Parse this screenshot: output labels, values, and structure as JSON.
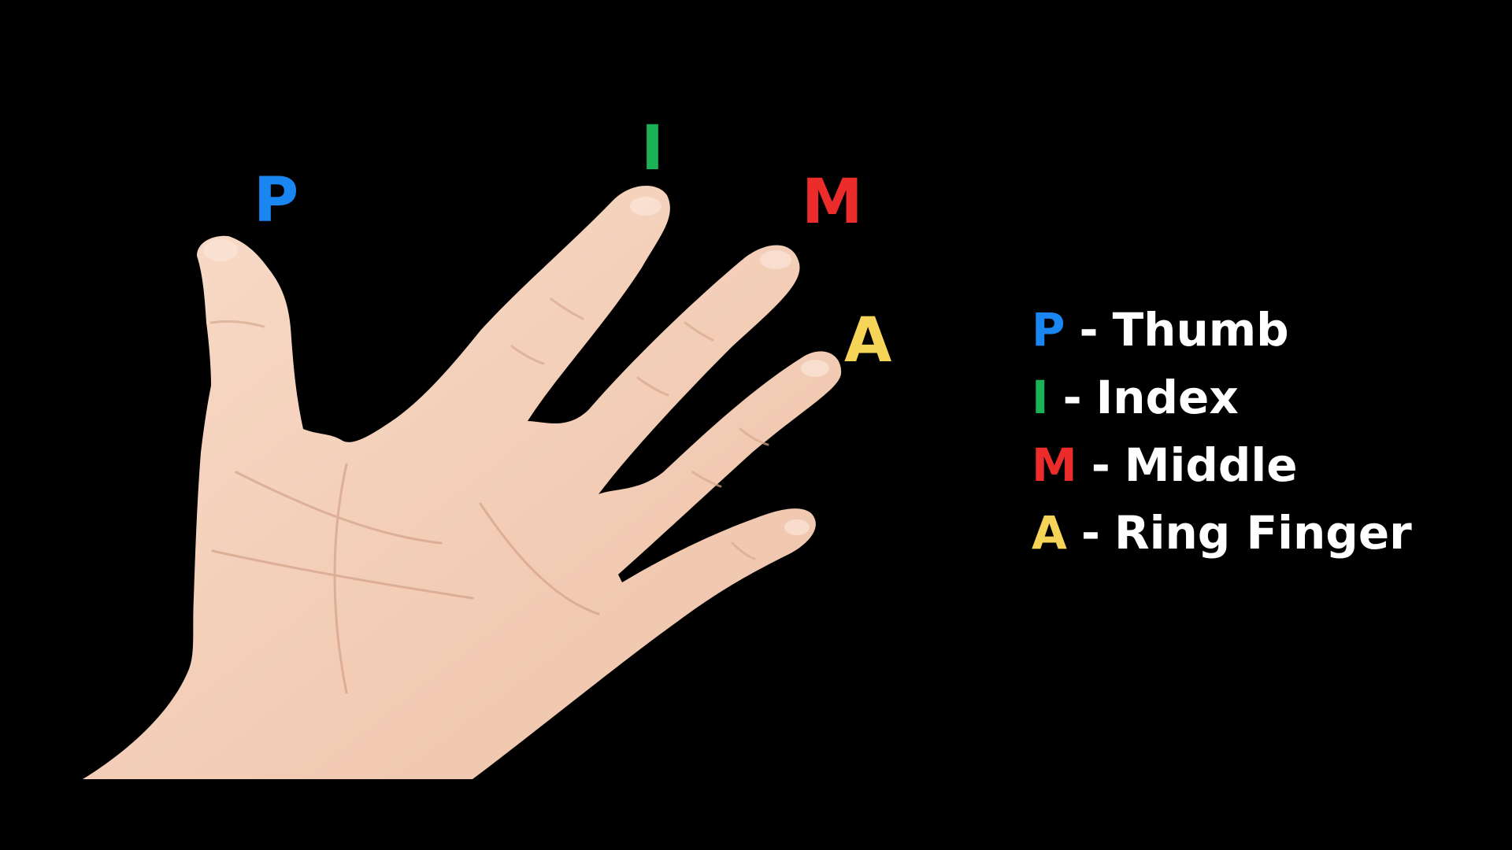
{
  "colors": {
    "background": "#000000",
    "thumb": "#1a86f2",
    "index": "#1bb257",
    "middle": "#ec2b2b",
    "ring": "#f5d457",
    "text": "#ffffff",
    "skin": "#f5d2bd",
    "skin_shadow": "#e8b9a0",
    "crease": "#d4a088"
  },
  "finger_labels": {
    "thumb": "P",
    "index": "I",
    "middle": "M",
    "ring": "A"
  },
  "legend": [
    {
      "letter": "P",
      "separator": "-",
      "name": "Thumb",
      "color_key": "thumb"
    },
    {
      "letter": "I",
      "separator": "-",
      "name": "Index",
      "color_key": "index"
    },
    {
      "letter": "M",
      "separator": "-",
      "name": "Middle",
      "color_key": "middle"
    },
    {
      "letter": "A",
      "separator": "-",
      "name": "Ring Finger",
      "color_key": "ring"
    }
  ]
}
